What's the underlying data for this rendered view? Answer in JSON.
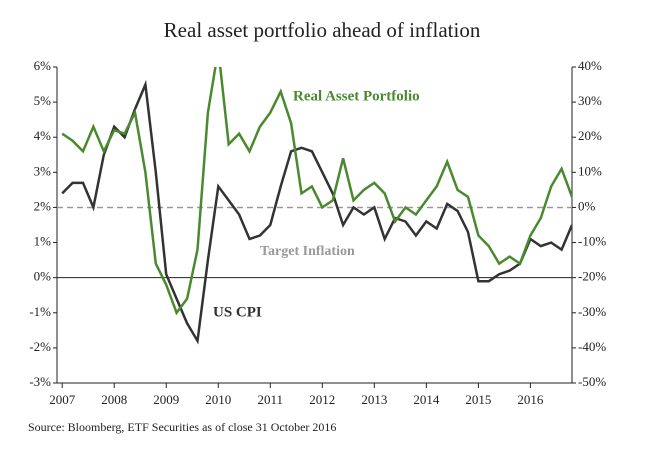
{
  "chart_data": {
    "type": "line",
    "title": "Real asset portfolio ahead of inflation",
    "source": "Source: Bloomberg, ETF Securities as of close 31 October 2016",
    "x": [
      2007.0,
      2007.2,
      2007.4,
      2007.6,
      2007.8,
      2008.0,
      2008.2,
      2008.4,
      2008.6,
      2008.8,
      2009.0,
      2009.2,
      2009.4,
      2009.6,
      2009.8,
      2010.0,
      2010.2,
      2010.4,
      2010.6,
      2010.8,
      2011.0,
      2011.2,
      2011.4,
      2011.6,
      2011.8,
      2012.0,
      2012.2,
      2012.4,
      2012.6,
      2012.8,
      2013.0,
      2013.2,
      2013.4,
      2013.6,
      2013.8,
      2014.0,
      2014.2,
      2014.4,
      2014.6,
      2014.8,
      2015.0,
      2015.2,
      2015.4,
      2015.6,
      2015.8,
      2016.0,
      2016.2,
      2016.4,
      2016.6,
      2016.8
    ],
    "xlim": [
      2006.9,
      2016.8
    ],
    "xticks": [
      2007,
      2008,
      2009,
      2010,
      2011,
      2012,
      2013,
      2014,
      2015,
      2016
    ],
    "ylim": [
      -3,
      6
    ],
    "yticks": [
      {
        "value": -3,
        "label": "-3%"
      },
      {
        "value": -2,
        "label": "-2%"
      },
      {
        "value": -1,
        "label": "-1%"
      },
      {
        "value": 0,
        "label": "0%"
      },
      {
        "value": 1,
        "label": "1%"
      },
      {
        "value": 2,
        "label": "2%"
      },
      {
        "value": 3,
        "label": "3%"
      },
      {
        "value": 4,
        "label": "4%"
      },
      {
        "value": 5,
        "label": "5%"
      },
      {
        "value": 6,
        "label": "6%"
      }
    ],
    "y2lim": [
      -50,
      40
    ],
    "y2ticks": [
      {
        "value": -50,
        "label": "-50%"
      },
      {
        "value": -40,
        "label": "-40%"
      },
      {
        "value": -30,
        "label": "-30%"
      },
      {
        "value": -20,
        "label": "-20%"
      },
      {
        "value": -10,
        "label": "-10%"
      },
      {
        "value": 0,
        "label": "0%"
      },
      {
        "value": 10,
        "label": "10%"
      },
      {
        "value": 20,
        "label": "20%"
      },
      {
        "value": 30,
        "label": "30%"
      },
      {
        "value": 40,
        "label": "40%"
      }
    ],
    "reference_line": {
      "value": 2,
      "label": "Target Inflation",
      "color": "#999999"
    },
    "series": [
      {
        "name": "US CPI",
        "color": "#333333",
        "axis": "y",
        "values": [
          2.4,
          2.7,
          2.7,
          2.0,
          3.5,
          4.3,
          4.0,
          4.8,
          5.5,
          3.0,
          0.1,
          -0.6,
          -1.3,
          -1.8,
          0.5,
          2.6,
          2.2,
          1.8,
          1.1,
          1.2,
          1.5,
          2.6,
          3.6,
          3.7,
          3.6,
          3.0,
          2.4,
          1.5,
          2.0,
          1.8,
          2.0,
          1.1,
          1.7,
          1.6,
          1.2,
          1.6,
          1.4,
          2.1,
          1.9,
          1.3,
          -0.1,
          -0.1,
          0.1,
          0.2,
          0.4,
          1.1,
          0.9,
          1.0,
          0.8,
          1.5
        ]
      },
      {
        "name": "Real Asset Portfolio",
        "color": "#4a8a2f",
        "axis": "y2",
        "values": [
          21,
          19,
          16,
          23,
          16,
          22,
          21,
          27,
          10,
          -16,
          -22,
          -30,
          -26,
          -12,
          27,
          45,
          18,
          21,
          16,
          23,
          27,
          33,
          24,
          4,
          6,
          0,
          2,
          14,
          2,
          5,
          7,
          4,
          -4,
          0,
          -2,
          2,
          6,
          13,
          5,
          3,
          -8,
          -11,
          -16,
          -14,
          -16,
          -8,
          -3,
          6,
          11,
          3
        ]
      }
    ]
  }
}
